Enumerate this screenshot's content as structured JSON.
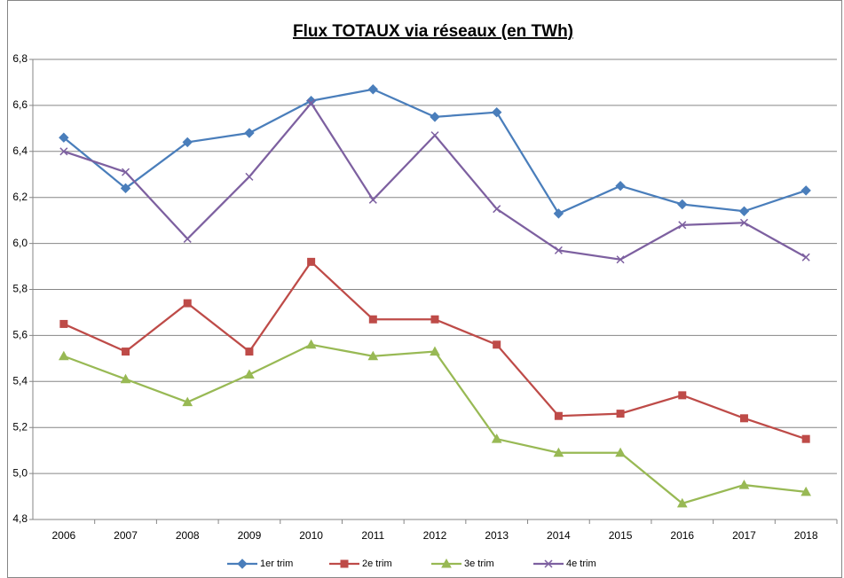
{
  "chart_data": {
    "type": "line",
    "title": "Flux TOTAUX via réseaux (en TWh)",
    "categories": [
      "2006",
      "2007",
      "2008",
      "2009",
      "2010",
      "2011",
      "2012",
      "2013",
      "2014",
      "2015",
      "2016",
      "2017",
      "2018"
    ],
    "series": [
      {
        "name": "1er trim",
        "color": "#4a7ebb",
        "marker": "diamond",
        "values": [
          6.46,
          6.24,
          6.44,
          6.48,
          6.62,
          6.67,
          6.55,
          6.57,
          6.13,
          6.25,
          6.17,
          6.14,
          6.23
        ]
      },
      {
        "name": "2e trim",
        "color": "#be4b48",
        "marker": "square",
        "values": [
          5.65,
          5.53,
          5.74,
          5.53,
          5.92,
          5.67,
          5.67,
          5.56,
          5.25,
          5.26,
          5.34,
          5.24,
          5.15
        ]
      },
      {
        "name": "3e trim",
        "color": "#98b954",
        "marker": "triangle",
        "values": [
          5.51,
          5.41,
          5.31,
          5.43,
          5.56,
          5.51,
          5.53,
          5.15,
          5.09,
          5.09,
          4.87,
          4.95,
          4.92
        ]
      },
      {
        "name": "4e trim",
        "color": "#7d60a0",
        "marker": "x",
        "values": [
          6.4,
          6.31,
          6.02,
          6.29,
          6.61,
          6.19,
          6.47,
          6.15,
          5.97,
          5.93,
          6.08,
          6.09,
          5.94
        ]
      }
    ],
    "ylim": [
      4.8,
      6.8
    ],
    "yticks": [
      {
        "value": 4.8,
        "label": "4,8"
      },
      {
        "value": 5.0,
        "label": "5,0"
      },
      {
        "value": 5.2,
        "label": "5,2"
      },
      {
        "value": 5.4,
        "label": "5,4"
      },
      {
        "value": 5.6,
        "label": "5,6"
      },
      {
        "value": 5.8,
        "label": "5,8"
      },
      {
        "value": 6.0,
        "label": "6,0"
      },
      {
        "value": 6.2,
        "label": "6,2"
      },
      {
        "value": 6.4,
        "label": "6,4"
      },
      {
        "value": 6.6,
        "label": "6,6"
      },
      {
        "value": 6.8,
        "label": "6,8"
      }
    ],
    "grid": true,
    "legend": "bottom"
  }
}
